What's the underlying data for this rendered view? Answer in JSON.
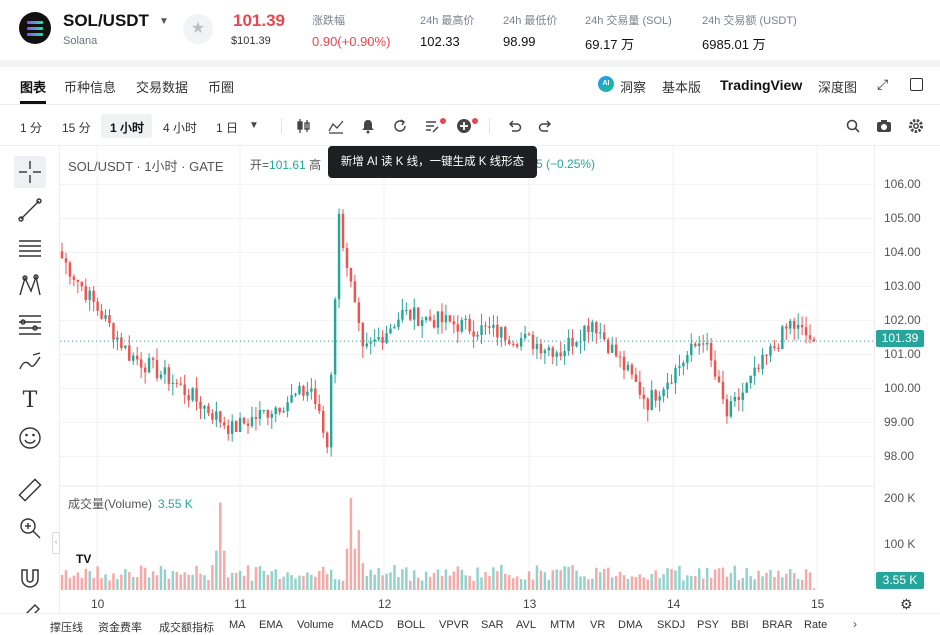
{
  "header": {
    "pair": "SOL/USDT",
    "coin_name": "Solana",
    "price": "101.39",
    "price_fiat": "$101.39",
    "change_label": "涨跌幅",
    "change_value": "0.90(+0.90%)",
    "high_label": "24h 最高价",
    "high_value": "102.33",
    "low_label": "24h 最低价",
    "low_value": "98.99",
    "vol_label": "24h 交易量 (SOL)",
    "vol_value": "69.17 万",
    "turnover_label": "24h 交易额 (USDT)",
    "turnover_value": "6985.01 万",
    "star_icon": "star-icon",
    "logo_icon": "solana-logo-icon"
  },
  "tabs": [
    "图表",
    "币种信息",
    "交易数据",
    "币圈"
  ],
  "right_tabs": {
    "ai": "洞察",
    "basic": "基本版",
    "tradingview": "TradingView",
    "depth": "深度图"
  },
  "toolbar": {
    "intervals": [
      "1 分",
      "15 分",
      "1 小时",
      "4 小时",
      "1 日"
    ],
    "active_interval": "1 小时"
  },
  "legend": {
    "title": "SOL/USDT · 1小时 · GATE",
    "open_label": "开=",
    "open_value": "101.61",
    "high_partial": "高",
    "change_partial": "5 (−0.25%)",
    "tooltip": "新增 AI 读 K 线，一键生成 K 线形态"
  },
  "volume": {
    "title": "成交量(Volume)",
    "value": "3.55 K"
  },
  "axis": {
    "price_ticks": [
      "106.00",
      "105.00",
      "104.00",
      "103.00",
      "102.00",
      "101.00",
      "100.00",
      "99.00",
      "98.00"
    ],
    "volume_ticks": [
      "200 K",
      "100 K"
    ],
    "current_price_tag": "101.39",
    "current_volume_tag": "3.55 K",
    "dates": [
      "10",
      "11",
      "12",
      "13",
      "14",
      "15"
    ]
  },
  "indicators": [
    "撑压线",
    "资金费率",
    "成交额指标",
    "MA",
    "EMA",
    "Volume",
    "MACD",
    "BOLL",
    "VPVR",
    "SAR",
    "AVL",
    "MTM",
    "VR",
    "DMA",
    "SKDJ",
    "PSY",
    "BBI",
    "BRAR",
    "Rate"
  ],
  "colors": {
    "up": "#26a69a",
    "down": "#ef5350",
    "price_red": "#e8474f"
  },
  "chart_data": {
    "type": "candlestick",
    "interval": "1 小时",
    "x_labels": [
      "10",
      "11",
      "12",
      "13",
      "14",
      "15"
    ],
    "ylim": [
      97.6,
      106.6
    ],
    "segments": [
      {
        "from": 104.0,
        "to": 101.0,
        "n": 18
      },
      {
        "from": 101.0,
        "to": 100.3,
        "n": 10
      },
      {
        "from": 100.3,
        "to": 98.8,
        "n": 16
      },
      {
        "from": 98.8,
        "to": 100.0,
        "n": 20
      },
      {
        "from": 100.0,
        "to": 98.3,
        "n": 4
      },
      {
        "from": 98.3,
        "to": 105.0,
        "n": 3
      },
      {
        "from": 105.0,
        "to": 101.0,
        "n": 6
      },
      {
        "from": 101.0,
        "to": 102.2,
        "n": 10
      },
      {
        "from": 102.2,
        "to": 101.6,
        "n": 26
      },
      {
        "from": 101.6,
        "to": 101.1,
        "n": 14
      },
      {
        "from": 101.1,
        "to": 102.0,
        "n": 8
      },
      {
        "from": 102.0,
        "to": 99.6,
        "n": 14
      },
      {
        "from": 99.6,
        "to": 101.5,
        "n": 14
      },
      {
        "from": 101.5,
        "to": 99.2,
        "n": 6
      },
      {
        "from": 99.2,
        "to": 101.9,
        "n": 16
      },
      {
        "from": 101.9,
        "to": 101.39,
        "n": 6
      }
    ],
    "volume_ylim": [
      0,
      200
    ],
    "volume_unit": "K",
    "volume_spikes": [
      {
        "at": 40,
        "value": 190
      },
      {
        "at": 73,
        "value": 200
      },
      {
        "at": 75,
        "value": 130
      }
    ],
    "current_price": 101.39,
    "current_volume": 3.55
  }
}
